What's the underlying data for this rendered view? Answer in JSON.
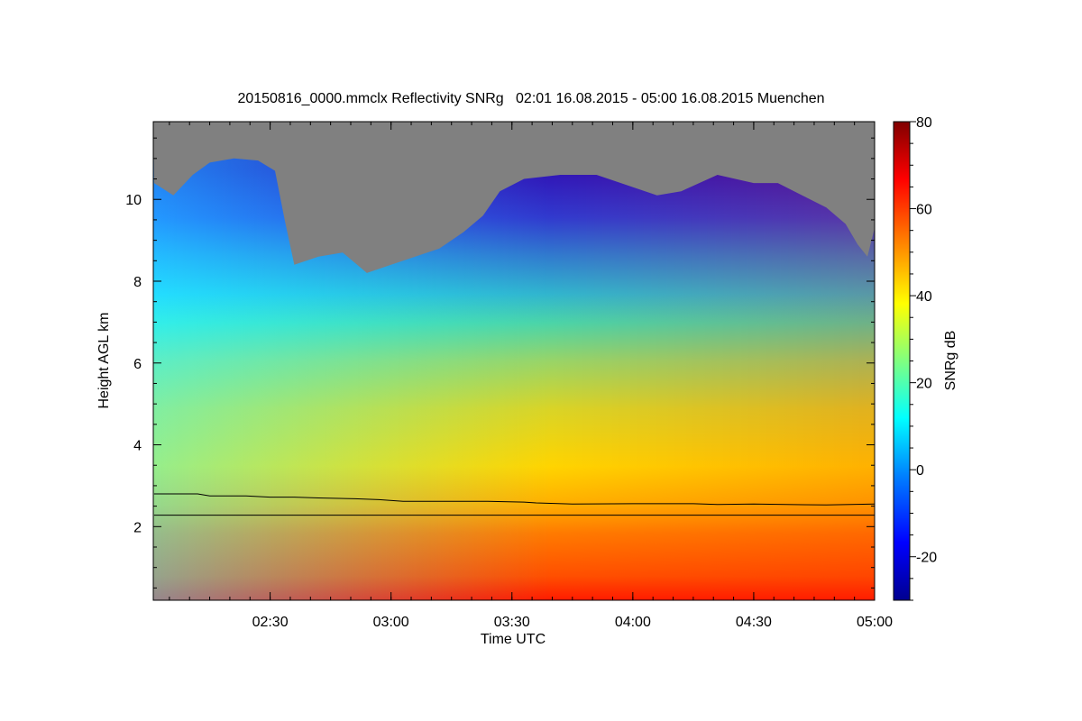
{
  "chart_data": {
    "type": "heatmap",
    "title": "20150816_0000.mmclx Reflectivity SNRg   02:01 16.08.2015 - 05:00 16.08.2015 Muenchen",
    "xlabel": "Time UTC",
    "ylabel": "Height AGL km",
    "colorbar_label": "SNRg dB",
    "x_range_hours": [
      2.0167,
      5.0
    ],
    "y_range_km": [
      0.2,
      11.9
    ],
    "x_ticks": [
      {
        "label": "02:30",
        "value": 2.5
      },
      {
        "label": "03:00",
        "value": 3.0
      },
      {
        "label": "03:30",
        "value": 3.5
      },
      {
        "label": "04:00",
        "value": 4.0
      },
      {
        "label": "04:30",
        "value": 4.5
      },
      {
        "label": "05:00",
        "value": 5.0
      }
    ],
    "y_ticks": [
      {
        "label": "2",
        "value": 2
      },
      {
        "label": "4",
        "value": 4
      },
      {
        "label": "6",
        "value": 6
      },
      {
        "label": "8",
        "value": 8
      },
      {
        "label": "10",
        "value": 10
      }
    ],
    "colorbar_range": [
      -30,
      80
    ],
    "colorbar_ticks": [
      {
        "label": "-20",
        "value": -20
      },
      {
        "label": "0",
        "value": 0
      },
      {
        "label": "20",
        "value": 20
      },
      {
        "label": "40",
        "value": 40
      },
      {
        "label": "60",
        "value": 60
      },
      {
        "label": "80",
        "value": 80
      }
    ],
    "colormap": [
      "#00008f",
      "#0000ff",
      "#0080ff",
      "#00ffff",
      "#80ff80",
      "#ffff00",
      "#ff8000",
      "#ff0000",
      "#800000"
    ],
    "no_signal_color": "#808080",
    "echo_top_km": [
      [
        2.02,
        10.4
      ],
      [
        2.1,
        10.1
      ],
      [
        2.18,
        10.6
      ],
      [
        2.25,
        10.9
      ],
      [
        2.35,
        11.0
      ],
      [
        2.45,
        10.95
      ],
      [
        2.52,
        10.7
      ],
      [
        2.56,
        9.5
      ],
      [
        2.6,
        8.4
      ],
      [
        2.7,
        8.6
      ],
      [
        2.8,
        8.7
      ],
      [
        2.9,
        8.2
      ],
      [
        3.0,
        8.4
      ],
      [
        3.1,
        8.6
      ],
      [
        3.2,
        8.8
      ],
      [
        3.3,
        9.2
      ],
      [
        3.38,
        9.6
      ],
      [
        3.45,
        10.2
      ],
      [
        3.55,
        10.5
      ],
      [
        3.7,
        10.6
      ],
      [
        3.85,
        10.6
      ],
      [
        4.0,
        10.3
      ],
      [
        4.1,
        10.1
      ],
      [
        4.2,
        10.2
      ],
      [
        4.35,
        10.6
      ],
      [
        4.5,
        10.4
      ],
      [
        4.6,
        10.4
      ],
      [
        4.7,
        10.1
      ],
      [
        4.8,
        9.8
      ],
      [
        4.88,
        9.4
      ],
      [
        4.93,
        8.9
      ],
      [
        4.97,
        8.6
      ],
      [
        5.0,
        9.3
      ]
    ],
    "lines": [
      {
        "points": [
          [
            2.02,
            2.8
          ],
          [
            2.2,
            2.8
          ],
          [
            2.25,
            2.75
          ],
          [
            2.4,
            2.75
          ],
          [
            2.5,
            2.72
          ],
          [
            2.6,
            2.72
          ],
          [
            2.7,
            2.7
          ],
          [
            2.85,
            2.68
          ],
          [
            2.95,
            2.66
          ],
          [
            3.05,
            2.62
          ],
          [
            3.2,
            2.62
          ],
          [
            3.4,
            2.62
          ],
          [
            3.55,
            2.6
          ],
          [
            3.6,
            2.58
          ],
          [
            3.75,
            2.55
          ],
          [
            4.0,
            2.56
          ],
          [
            4.25,
            2.56
          ],
          [
            4.35,
            2.54
          ],
          [
            4.5,
            2.55
          ],
          [
            4.8,
            2.53
          ],
          [
            5.0,
            2.55
          ]
        ]
      },
      {
        "points": [
          [
            2.02,
            2.28
          ],
          [
            5.0,
            2.28
          ]
        ]
      }
    ]
  }
}
